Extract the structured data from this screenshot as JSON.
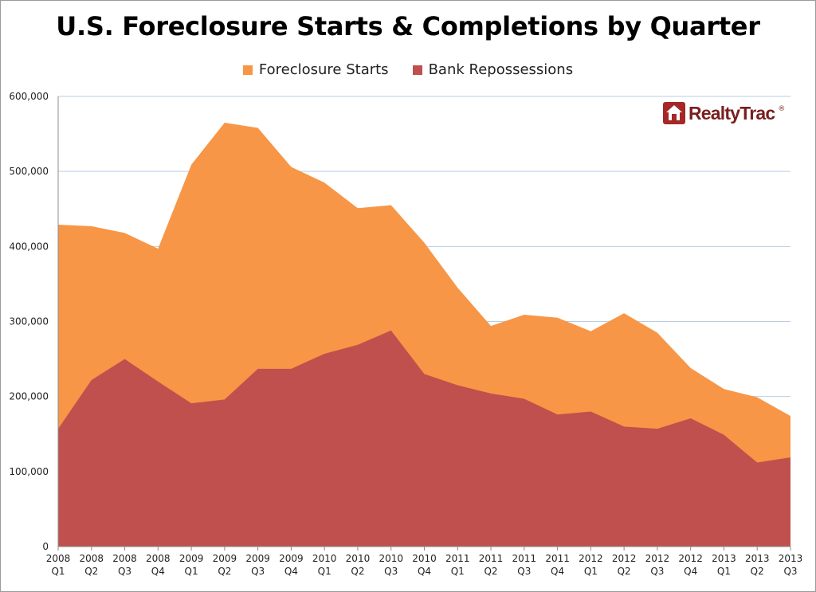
{
  "chart_data": {
    "type": "area",
    "title": "U.S. Foreclosure Starts & Completions by Quarter",
    "xlabel": "",
    "ylabel": "",
    "ylim": [
      0,
      600000
    ],
    "yticks": [
      0,
      100000,
      200000,
      300000,
      400000,
      500000,
      600000
    ],
    "ytick_labels": [
      "0",
      "100,000",
      "200,000",
      "300,000",
      "400,000",
      "500,000",
      "600,000"
    ],
    "grid": true,
    "legend_position": "top-center",
    "categories": [
      {
        "year": "2008",
        "q": "Q1"
      },
      {
        "year": "2008",
        "q": "Q2"
      },
      {
        "year": "2008",
        "q": "Q3"
      },
      {
        "year": "2008",
        "q": "Q4"
      },
      {
        "year": "2009",
        "q": "Q1"
      },
      {
        "year": "2009",
        "q": "Q2"
      },
      {
        "year": "2009",
        "q": "Q3"
      },
      {
        "year": "2009",
        "q": "Q4"
      },
      {
        "year": "2010",
        "q": "Q1"
      },
      {
        "year": "2010",
        "q": "Q2"
      },
      {
        "year": "2010",
        "q": "Q3"
      },
      {
        "year": "2010",
        "q": "Q4"
      },
      {
        "year": "2011",
        "q": "Q1"
      },
      {
        "year": "2011",
        "q": "Q2"
      },
      {
        "year": "2011",
        "q": "Q3"
      },
      {
        "year": "2011",
        "q": "Q4"
      },
      {
        "year": "2012",
        "q": "Q1"
      },
      {
        "year": "2012",
        "q": "Q2"
      },
      {
        "year": "2012",
        "q": "Q3"
      },
      {
        "year": "2012",
        "q": "Q4"
      },
      {
        "year": "2013",
        "q": "Q1"
      },
      {
        "year": "2013",
        "q": "Q2"
      },
      {
        "year": "2013",
        "q": "Q3"
      }
    ],
    "series": [
      {
        "name": "Foreclosure Starts",
        "color": "#f79646",
        "values": [
          429000,
          427000,
          418000,
          397000,
          509000,
          565000,
          558000,
          506000,
          485000,
          451000,
          455000,
          405000,
          345000,
          294000,
          309000,
          305000,
          287000,
          311000,
          285000,
          238000,
          210000,
          199000,
          174000
        ]
      },
      {
        "name": "Bank Repossessions",
        "color": "#c0504d",
        "values": [
          157000,
          222000,
          250000,
          220000,
          191000,
          196000,
          237000,
          237000,
          257000,
          269000,
          288000,
          230000,
          215000,
          204000,
          197000,
          176000,
          180000,
          160000,
          157000,
          171000,
          149000,
          112000,
          119000
        ]
      }
    ]
  },
  "logo": {
    "text": "RealtyTrac",
    "mark": "®",
    "color": "#a32826"
  }
}
